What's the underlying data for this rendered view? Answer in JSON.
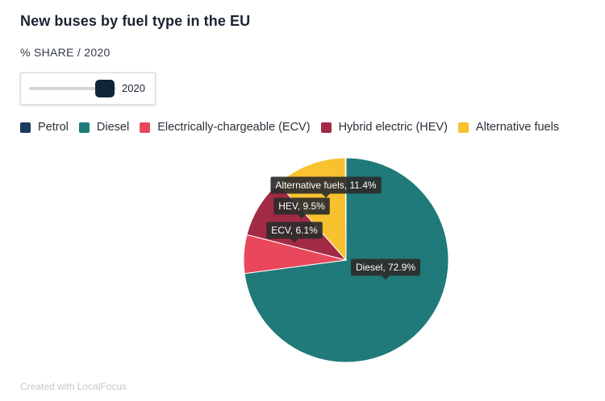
{
  "header": {
    "title": "New buses by fuel type in the EU",
    "subtitle": "% SHARE / 2020"
  },
  "slider": {
    "value": "2020",
    "position_fraction": 1.0
  },
  "legend": [
    {
      "label": "Petrol",
      "color": "#1e3a5f"
    },
    {
      "label": "Diesel",
      "color": "#1f7a79"
    },
    {
      "label": "Electrically-chargeable (ECV)",
      "color": "#e8475c"
    },
    {
      "label": "Hybrid electric (HEV)",
      "color": "#a32a45"
    },
    {
      "label": "Alternative fuels",
      "color": "#f7c12f"
    }
  ],
  "chart_data": {
    "type": "pie",
    "title": "New buses by fuel type in the EU",
    "subtitle": "% SHARE / 2020",
    "slices": [
      {
        "name": "Diesel",
        "value": 72.9,
        "color": "#1f7a79",
        "tooltip": "Diesel, 72.9%"
      },
      {
        "name": "Electrically-chargeable (ECV)",
        "value": 6.1,
        "color": "#e8475c",
        "tooltip": "ECV, 6.1%"
      },
      {
        "name": "Hybrid electric (HEV)",
        "value": 9.5,
        "color": "#a32a45",
        "tooltip": "HEV, 9.5%"
      },
      {
        "name": "Alternative fuels",
        "value": 11.4,
        "color": "#f7c12f",
        "tooltip": "Alternative fuels, 11.4%"
      },
      {
        "name": "Petrol",
        "value": 0.1,
        "color": "#1e3a5f",
        "tooltip": ""
      }
    ],
    "legend_position": "top-left"
  },
  "footer": {
    "credit": "Created with LocalFocus"
  }
}
